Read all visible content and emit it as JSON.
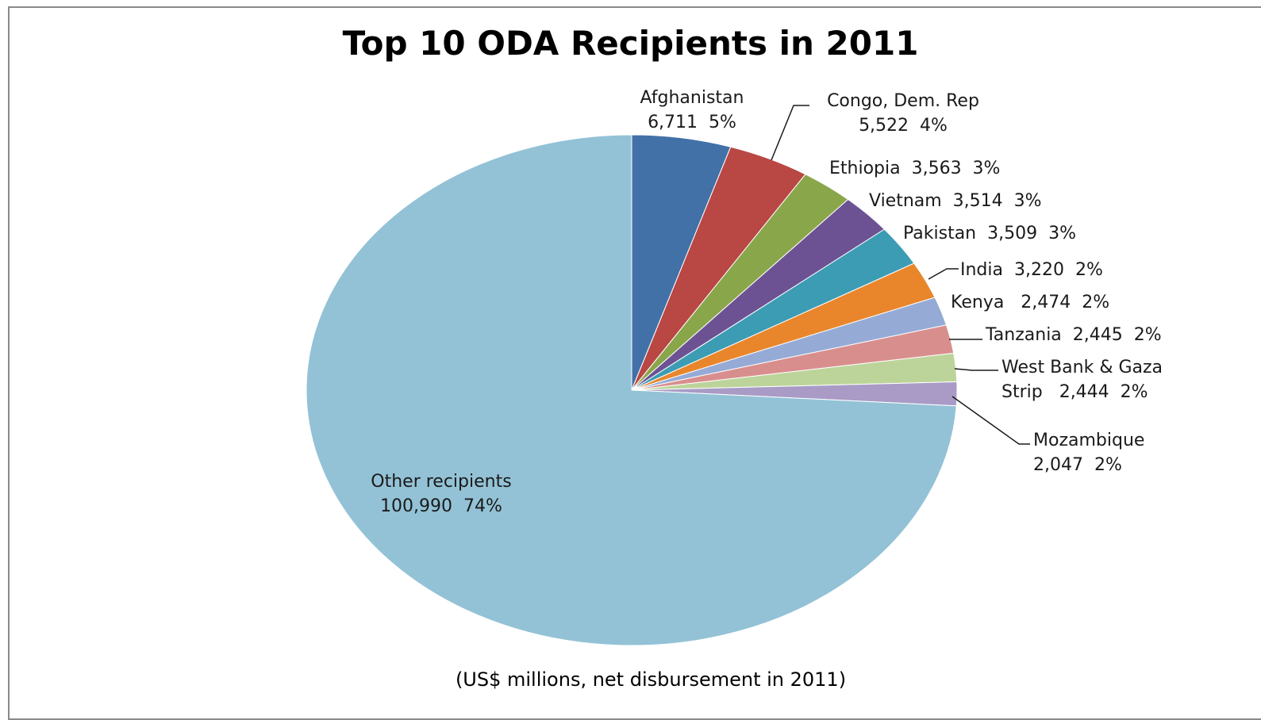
{
  "chart_data": {
    "type": "pie",
    "title": "Top 10 ODA Recipients in 2011",
    "note": "(US$ millions, net disbursement in 2011)",
    "slices": [
      {
        "label": "Afghanistan",
        "value": 6711,
        "pct": "5%",
        "color": "#4271a8"
      },
      {
        "label": "Congo, Dem. Rep",
        "value": 5522,
        "pct": "4%",
        "color": "#b94744"
      },
      {
        "label": "Ethiopia",
        "value": 3563,
        "pct": "3%",
        "color": "#8aa64b"
      },
      {
        "label": "Vietnam",
        "value": 3514,
        "pct": "3%",
        "color": "#6d5293"
      },
      {
        "label": "Pakistan",
        "value": 3509,
        "pct": "3%",
        "color": "#3c9cb4"
      },
      {
        "label": "India",
        "value": 3220,
        "pct": "2%",
        "color": "#e9862c"
      },
      {
        "label": "Kenya",
        "value": 2474,
        "pct": "2%",
        "color": "#95abd6"
      },
      {
        "label": "Tanzania",
        "value": 2445,
        "pct": "2%",
        "color": "#d98e8e"
      },
      {
        "label": "West Bank & Gaza Strip",
        "value": 2444,
        "pct": "2%",
        "color": "#bcd49a"
      },
      {
        "label": "Mozambique",
        "value": 2047,
        "pct": "2%",
        "color": "#a99bc6"
      },
      {
        "label": "Other recipients",
        "value": 100990,
        "pct": "74%",
        "color": "#93c2d6"
      }
    ],
    "label_text": [
      [
        "Afghanistan",
        "6,711  5%"
      ],
      [
        "Congo, Dem. Rep",
        "5,522  4%"
      ],
      [
        "Ethiopia  3,563  3%"
      ],
      [
        "Vietnam  3,514  3%"
      ],
      [
        "Pakistan  3,509  3%"
      ],
      [
        "India  3,220  2%"
      ],
      [
        "Kenya   2,474  2%"
      ],
      [
        "Tanzania  2,445  2%"
      ],
      [
        "West Bank & Gaza",
        "Strip   2,444  2%"
      ],
      [
        "Mozambique",
        "2,047  2%"
      ],
      [
        "Other recipients",
        "100,990  74%"
      ]
    ]
  }
}
